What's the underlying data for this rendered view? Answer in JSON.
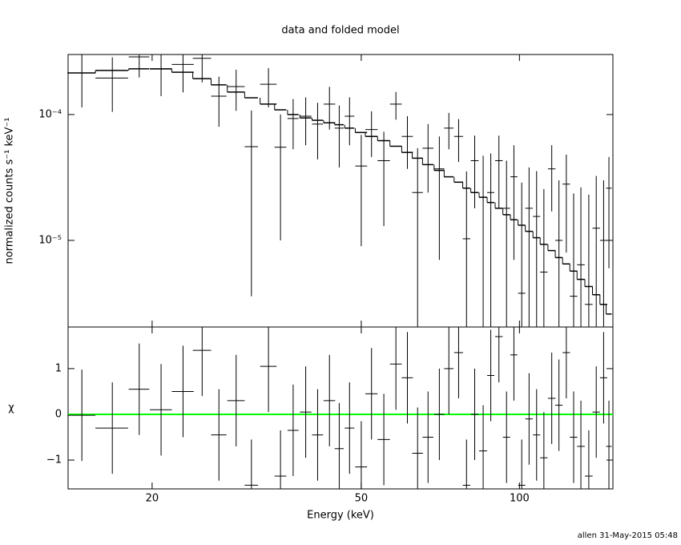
{
  "chart_data": [
    {
      "type": "errorbar",
      "title": "data and folded model",
      "ylabel": "normalized counts s⁻¹ keV⁻¹",
      "xlog": true,
      "ylog": true,
      "xlim": [
        13.84,
        150.6
      ],
      "ylim": [
        2.05e-06,
        0.0003
      ],
      "yticks": [
        {
          "value": 0.0001,
          "label": "10⁻⁴"
        },
        {
          "value": 1e-05,
          "label": "10⁻⁵"
        }
      ],
      "x": [
        14.7,
        16.8,
        18.9,
        20.8,
        22.9,
        24.9,
        26.8,
        28.9,
        30.9,
        33.3,
        35.1,
        37.1,
        39.2,
        41.3,
        43.5,
        45.4,
        47.5,
        50,
        52.3,
        55.2,
        58.2,
        61.2,
        64,
        67,
        70.4,
        73.4,
        76.6,
        79.3,
        82.2,
        85.3,
        88.2,
        91.4,
        94.5,
        97.6,
        101,
        104.3,
        107.8,
        111.3,
        115.2,
        118.9,
        122.8,
        126.8,
        130.9,
        135.5,
        140,
        144.6,
        148
      ],
      "xerr": [
        0.9,
        1.2,
        0.85,
        1.0,
        1.1,
        1.0,
        0.9,
        1.1,
        0.9,
        1.2,
        0.9,
        0.9,
        1.0,
        1.0,
        1.1,
        0.9,
        1.0,
        1.3,
        1.4,
        1.5,
        1.5,
        1.5,
        1.5,
        1.6,
        1.6,
        1.5,
        1.5,
        1.3,
        1.4,
        1.5,
        1.4,
        1.5,
        1.5,
        1.5,
        1.6,
        1.7,
        1.7,
        1.8,
        1.9,
        1.9,
        2.0,
        2.1,
        2.2,
        2.3,
        2.3,
        2.3,
        1.8
      ],
      "series": [
        {
          "color": "#000000",
          "values": [
            0.000214,
            0.000195,
            0.000287,
            0.00023,
            0.00025,
            0.00028,
            0.00014,
            0.000167,
            5.56e-05,
            0.000174,
            5.5e-05,
            9.3e-05,
            9.7e-05,
            8.4e-05,
            0.000121,
            7.8e-05,
            9.7e-05,
            3.9e-05,
            7.6e-05,
            4.3e-05,
            0.000121,
            6.7e-05,
            2.4e-05,
            5.4e-05,
            3.7e-05,
            7.8e-05,
            6.7e-05,
            1.03e-05,
            4.3e-05,
            2.2e-05,
            2.4e-05,
            4.3e-05,
            1.8e-05,
            3.2e-05,
            3.8e-06,
            1.8e-05,
            1.55e-05,
            5.6e-06,
            3.7e-05,
            1e-05,
            2.8e-05,
            3.6e-06,
            6.4e-06,
            3.1e-06,
            1.25e-05,
            1e-05,
            2.6e-05
          ],
          "errors": [
            0.0001,
            9e-05,
            9e-05,
            9e-05,
            0.0001,
            0.0001,
            6e-05,
            6e-05,
            5.2e-05,
            6e-05,
            4.5e-05,
            4e-05,
            4e-05,
            4e-05,
            4.5e-05,
            4e-05,
            4e-05,
            3e-05,
            3e-05,
            3e-05,
            3e-05,
            3e-05,
            3e-05,
            3e-05,
            3e-05,
            2.5e-05,
            2.5e-05,
            2.5e-05,
            2.5e-05,
            2.5e-05,
            2.5e-05,
            2.5e-05,
            2.5e-05,
            2.5e-05,
            2.5e-05,
            2e-05,
            2e-05,
            2e-05,
            2e-05,
            2e-05,
            2e-05,
            2e-05,
            2e-05,
            2e-05,
            2e-05,
            2e-05,
            2e-05
          ]
        },
        {
          "color": "#000000",
          "style": "step",
          "values": [
            0.000214,
            0.000224,
            0.000231,
            0.000231,
            0.000217,
            0.000193,
            0.000172,
            0.000151,
            0.000136,
            0.000121,
            0.000109,
            0.0001,
            9.4e-05,
            9e-05,
            8.6e-05,
            8.3e-05,
            7.8e-05,
            7.2e-05,
            6.7e-05,
            6.2e-05,
            5.6e-05,
            5e-05,
            4.5e-05,
            4e-05,
            3.6e-05,
            3.2e-05,
            2.9e-05,
            2.6e-05,
            2.4e-05,
            2.2e-05,
            2e-05,
            1.8e-05,
            1.6e-05,
            1.46e-05,
            1.32e-05,
            1.18e-05,
            1.05e-05,
            9.3e-06,
            8.3e-06,
            7.3e-06,
            6.5e-06,
            5.7e-06,
            4.9e-06,
            4.3e-06,
            3.7e-06,
            3.1e-06,
            2.6e-06
          ]
        }
      ]
    },
    {
      "type": "residual",
      "ylabel": "χ",
      "xlabel": "Energy (keV)",
      "xlog": true,
      "xlim": [
        13.84,
        150.6
      ],
      "xticks": [
        20,
        50,
        100
      ],
      "ylim": [
        -1.63,
        1.91
      ],
      "yticks": [
        {
          "value": -1,
          "label": "−1"
        },
        0,
        1
      ],
      "zero_line": {
        "value": 0,
        "color": "#00ff00"
      },
      "series": [
        {
          "color": "#000000",
          "values": [
            -0.02,
            -0.3,
            0.55,
            0.1,
            0.5,
            1.4,
            -0.45,
            0.3,
            -1.55,
            1.05,
            -1.35,
            -0.35,
            0.05,
            -0.45,
            0.3,
            -0.75,
            -0.3,
            -1.15,
            0.45,
            -0.55,
            1.1,
            0.8,
            -0.85,
            -0.5,
            0.0,
            1.0,
            1.35,
            -1.55,
            0.0,
            -0.8,
            0.85,
            1.7,
            -0.5,
            1.3,
            -1.55,
            -0.1,
            -0.45,
            -0.95,
            0.35,
            0.2,
            1.35,
            -0.5,
            -0.7,
            -1.35,
            0.05,
            0.8,
            -0.7
          ],
          "errors": [
            1,
            1,
            1,
            1,
            1,
            1,
            1,
            1,
            1,
            1,
            1,
            1,
            1,
            1,
            1,
            1,
            1,
            1,
            1,
            1,
            1,
            1,
            1,
            1,
            1,
            1,
            1,
            1,
            1,
            1,
            1,
            1,
            1,
            1,
            1,
            1,
            1,
            1,
            1,
            1,
            1,
            1,
            1,
            1,
            1,
            1,
            1
          ]
        }
      ]
    }
  ],
  "footer": "allen 31-May-2015 05:48"
}
